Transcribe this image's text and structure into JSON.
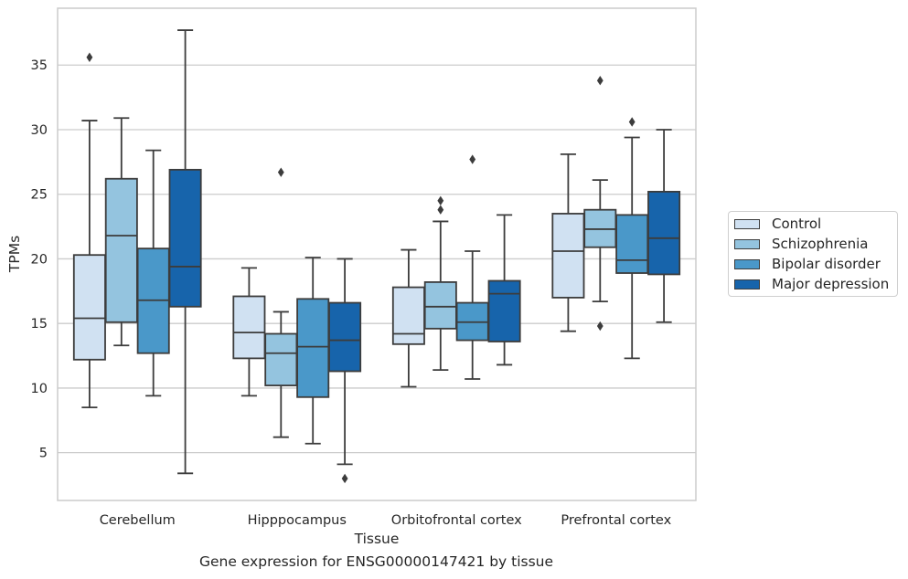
{
  "chart_data": {
    "type": "box",
    "title": "",
    "xlabel": "Tissue",
    "ylabel": "TPMs",
    "ylim": [
      1.3,
      39.4
    ],
    "yticks": [
      5,
      10,
      15,
      20,
      25,
      30,
      35
    ],
    "grid": "horizontal",
    "legend_position": "right",
    "categories": [
      "Cerebellum",
      "Hipppocampus",
      "Orbitofrontal cortex",
      "Prefrontal cortex"
    ],
    "series": [
      {
        "name": "Control",
        "color": "#d0e1f2",
        "boxes": [
          {
            "whisker_low": 8.5,
            "q1": 12.2,
            "median": 15.4,
            "q3": 20.3,
            "whisker_high": 30.7,
            "outliers": [
              35.6
            ]
          },
          {
            "whisker_low": 9.4,
            "q1": 12.3,
            "median": 14.3,
            "q3": 17.1,
            "whisker_high": 19.3,
            "outliers": []
          },
          {
            "whisker_low": 10.1,
            "q1": 13.4,
            "median": 14.2,
            "q3": 17.8,
            "whisker_high": 20.7,
            "outliers": []
          },
          {
            "whisker_low": 14.4,
            "q1": 17.0,
            "median": 20.6,
            "q3": 23.5,
            "whisker_high": 28.1,
            "outliers": []
          }
        ]
      },
      {
        "name": "Schizophrenia",
        "color": "#94c4df",
        "boxes": [
          {
            "whisker_low": 13.3,
            "q1": 15.1,
            "median": 21.8,
            "q3": 26.2,
            "whisker_high": 30.9,
            "outliers": []
          },
          {
            "whisker_low": 6.2,
            "q1": 10.2,
            "median": 12.7,
            "q3": 14.2,
            "whisker_high": 15.9,
            "outliers": [
              26.7
            ]
          },
          {
            "whisker_low": 11.4,
            "q1": 14.6,
            "median": 16.3,
            "q3": 18.2,
            "whisker_high": 22.9,
            "outliers": [
              23.8,
              24.5
            ]
          },
          {
            "whisker_low": 16.7,
            "q1": 20.9,
            "median": 22.3,
            "q3": 23.8,
            "whisker_high": 26.1,
            "outliers": [
              14.8,
              33.8
            ]
          }
        ]
      },
      {
        "name": "Bipolar disorder",
        "color": "#4a98c9",
        "boxes": [
          {
            "whisker_low": 9.4,
            "q1": 12.7,
            "median": 16.8,
            "q3": 20.8,
            "whisker_high": 28.4,
            "outliers": []
          },
          {
            "whisker_low": 5.7,
            "q1": 9.3,
            "median": 13.2,
            "q3": 16.9,
            "whisker_high": 20.1,
            "outliers": []
          },
          {
            "whisker_low": 10.7,
            "q1": 13.7,
            "median": 15.1,
            "q3": 16.6,
            "whisker_high": 20.6,
            "outliers": [
              27.7
            ]
          },
          {
            "whisker_low": 12.3,
            "q1": 18.9,
            "median": 19.9,
            "q3": 23.4,
            "whisker_high": 29.4,
            "outliers": [
              30.6
            ]
          }
        ]
      },
      {
        "name": "Major depression",
        "color": "#1764ab",
        "boxes": [
          {
            "whisker_low": 3.4,
            "q1": 16.3,
            "median": 19.4,
            "q3": 26.9,
            "whisker_high": 37.7,
            "outliers": []
          },
          {
            "whisker_low": 4.1,
            "q1": 11.3,
            "median": 13.7,
            "q3": 16.6,
            "whisker_high": 20.0,
            "outliers": [
              3.0
            ]
          },
          {
            "whisker_low": 11.8,
            "q1": 13.6,
            "median": 17.3,
            "q3": 18.3,
            "whisker_high": 23.4,
            "outliers": []
          },
          {
            "whisker_low": 15.1,
            "q1": 18.8,
            "median": 21.6,
            "q3": 25.2,
            "whisker_high": 30.0,
            "outliers": []
          }
        ]
      }
    ]
  },
  "caption": "Gene expression for ENSG00000147421 by tissue"
}
